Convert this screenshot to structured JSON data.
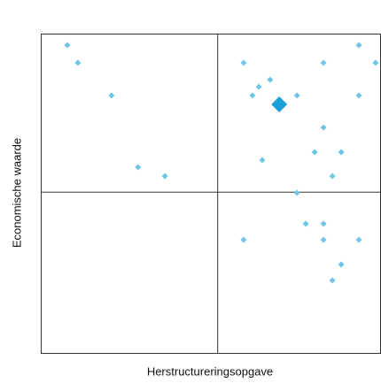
{
  "chart_data": {
    "type": "scatter",
    "xlabel": "Herstructureringsopgave",
    "ylabel": "Economische waarde",
    "xlim": [
      0,
      10
    ],
    "ylim": [
      0,
      10
    ],
    "color": "#6ec6e6",
    "x": [
      0.78,
      1.09,
      2.08,
      2.86,
      3.65,
      5.96,
      8.31,
      9.35,
      9.84,
      6.74,
      6.41,
      6.22,
      7.53,
      9.35,
      8.31,
      8.05,
      8.83,
      6.51,
      8.57,
      7.53,
      7.79,
      8.31,
      5.96,
      8.31,
      9.35,
      8.83,
      8.57
    ],
    "values": [
      9.64,
      9.09,
      8.07,
      5.83,
      5.55,
      9.09,
      9.09,
      9.64,
      9.09,
      8.56,
      8.34,
      8.07,
      8.07,
      8.07,
      7.07,
      6.3,
      6.3,
      6.05,
      5.55,
      5.03,
      4.06,
      4.06,
      3.56,
      3.56,
      3.56,
      2.79,
      2.29
    ],
    "highlight": {
      "x": 7.01,
      "value": 7.79,
      "color": "#1a9fd6"
    },
    "quadrant_lines": {
      "x": 5.2,
      "y": 5.05
    }
  }
}
